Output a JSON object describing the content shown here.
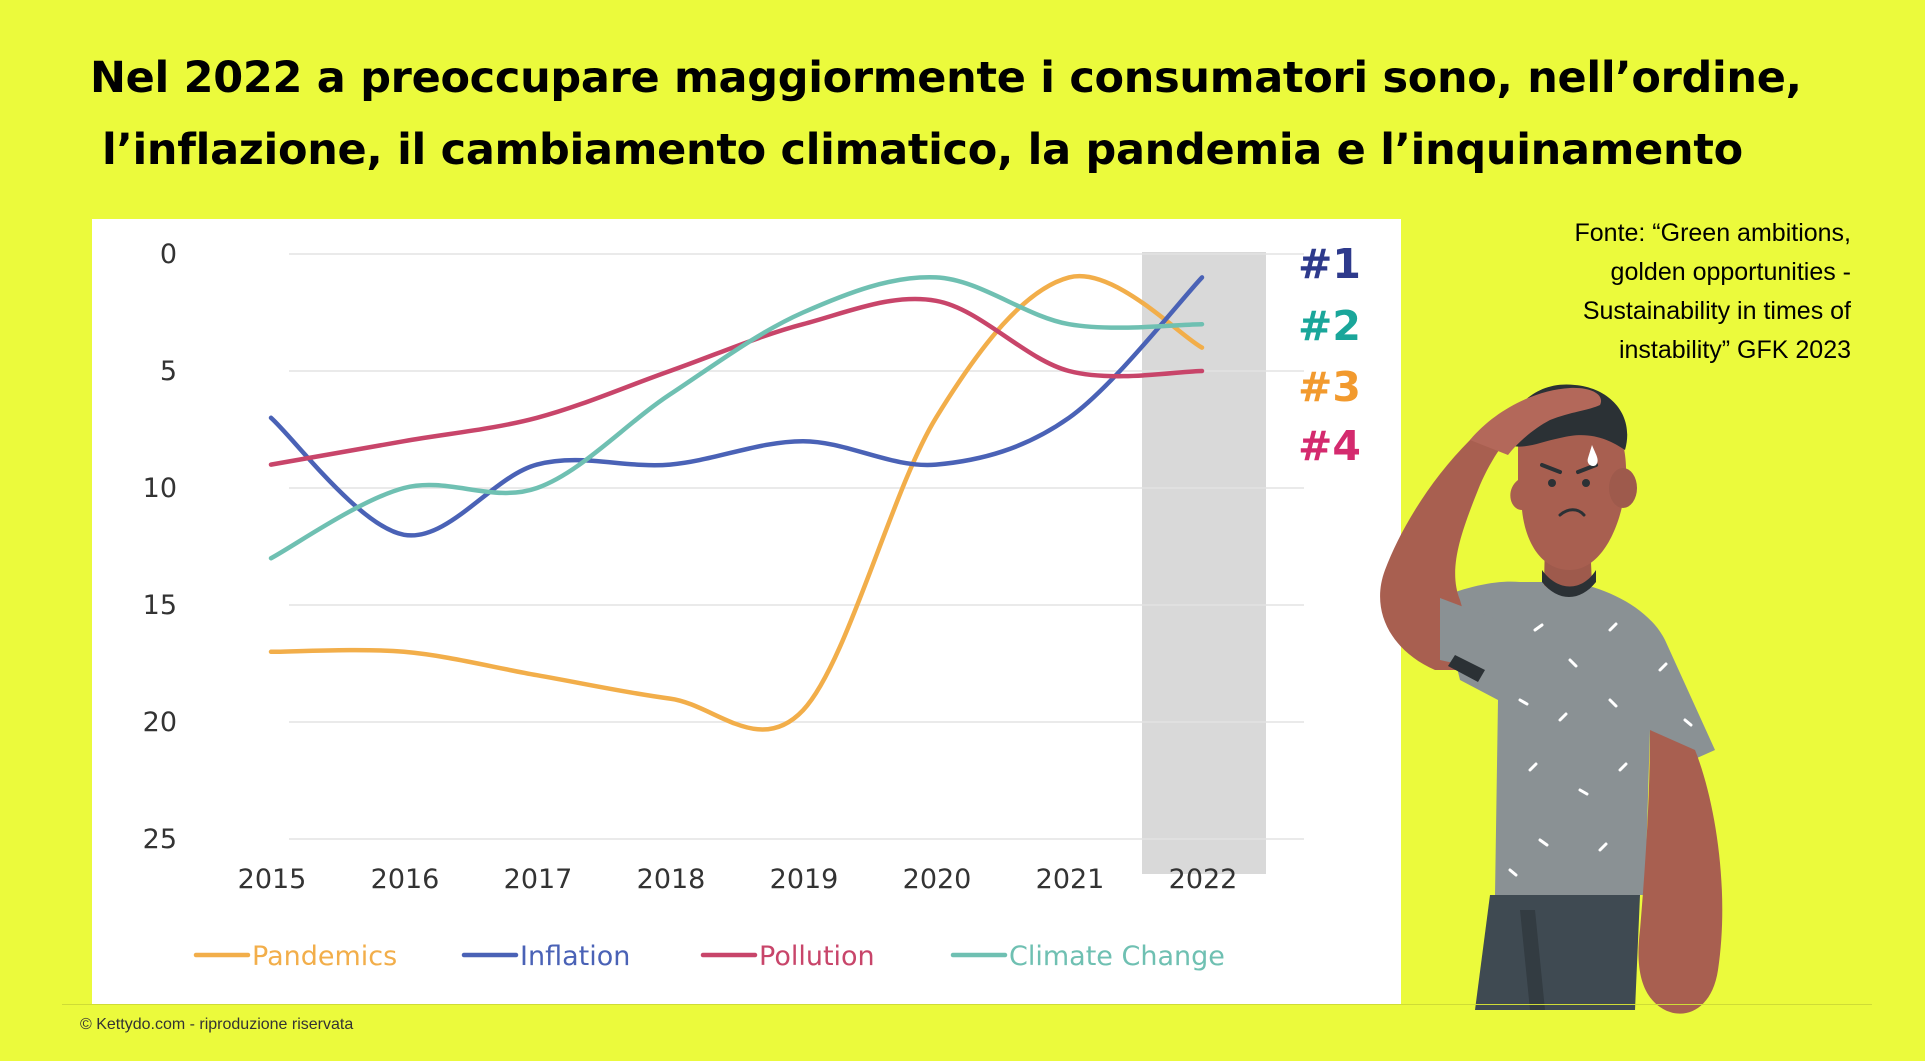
{
  "title": {
    "line1": "Nel 2022 a preoccupare maggiormente i consumatori sono, nell’ordine,",
    "line2": "l’inflazione, il cambiamento climatico, la pandemia e l’inquinamento"
  },
  "source": {
    "lines": [
      "Fonte: “Green ambitions,",
      "golden opportunities -",
      "Sustainability in times of",
      "instability” GFK 2023"
    ]
  },
  "ranks": [
    {
      "label": "#1",
      "color": "#2e3a8c"
    },
    {
      "label": "#2",
      "color": "#1aa69a"
    },
    {
      "label": "#3",
      "color": "#f29a2e"
    },
    {
      "label": "#4",
      "color": "#d42a6e"
    }
  ],
  "copyright": "© Kettydo.com - riproduzione riservata",
  "chart_data": {
    "type": "line",
    "title": "",
    "xlabel": "",
    "ylabel": "",
    "y_inverted": true,
    "ylim": [
      0,
      25
    ],
    "yticks": [
      "0",
      "5",
      "10",
      "15",
      "20",
      "25"
    ],
    "categories": [
      "2015",
      "2016",
      "2017",
      "2018",
      "2019",
      "2020",
      "2021",
      "2022"
    ],
    "highlight_category": "2022",
    "grid": true,
    "legend_position": "bottom",
    "series": [
      {
        "name": "Pandemics",
        "color": "#f2ae4a",
        "values": [
          17,
          17,
          18,
          19,
          19.5,
          7,
          1,
          4
        ]
      },
      {
        "name": "Inflation",
        "color": "#4a62b6",
        "values": [
          7,
          12,
          9,
          9,
          8,
          9,
          7,
          1
        ]
      },
      {
        "name": "Pollution",
        "color": "#c8456a",
        "values": [
          9,
          8,
          7,
          5,
          3,
          2,
          5,
          5
        ]
      },
      {
        "name": "Climate Change",
        "color": "#6fc0b2",
        "values": [
          13,
          10,
          10,
          6,
          2.5,
          1,
          3,
          3
        ]
      }
    ]
  }
}
